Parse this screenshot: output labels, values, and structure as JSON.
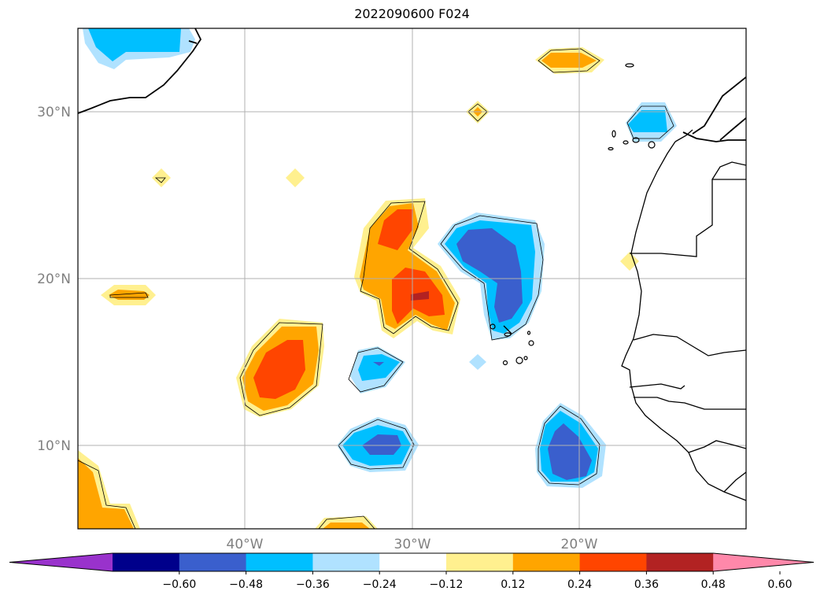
{
  "title": "2022090600 F024",
  "lat_labels": [
    "30°N",
    "20°N",
    "10°N"
  ],
  "lon_labels": [
    "40°W",
    "30°W",
    "20°W"
  ],
  "colorbar": {
    "ticks": [
      "−0.60",
      "−0.48",
      "−0.36",
      "−0.24",
      "−0.12",
      "0.12",
      "0.24",
      "0.36",
      "0.48",
      "0.60"
    ],
    "colors": [
      "#9932cc",
      "#00008b",
      "#3a5fcd",
      "#00bfff",
      "#b0e2ff",
      "#ffffff",
      "#fff08f",
      "#ffa500",
      "#ff4500",
      "#b22222",
      "#ff88aa"
    ]
  },
  "colors": {
    "grid": "#b0b0b0",
    "coast": "#000000"
  }
}
